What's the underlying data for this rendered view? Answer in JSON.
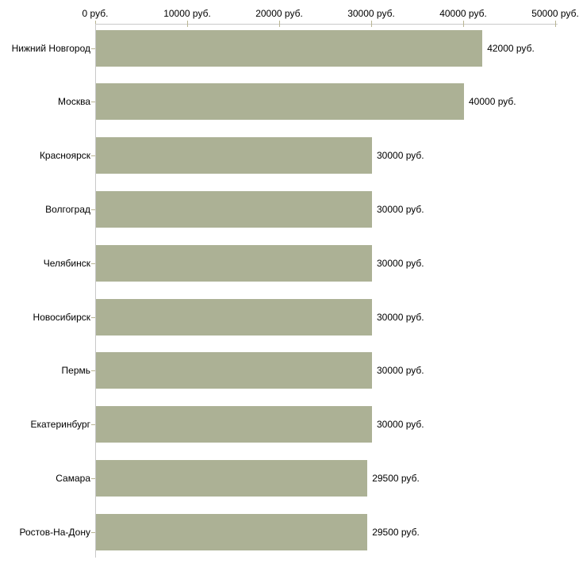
{
  "chart_data": {
    "type": "bar",
    "orientation": "horizontal",
    "title": "",
    "xlabel": "",
    "ylabel": "",
    "unit": "руб.",
    "xlim": [
      0,
      50000
    ],
    "grid": false,
    "legend_position": "none",
    "categories": [
      "Нижний Новгород",
      "Москва",
      "Красноярск",
      "Волгоград",
      "Челябинск",
      "Новосибирск",
      "Пермь",
      "Екатеринбург",
      "Самара",
      "Ростов-На-Дону"
    ],
    "values": [
      42000,
      40000,
      30000,
      30000,
      30000,
      30000,
      30000,
      30000,
      29500,
      29500
    ],
    "value_labels": [
      "42000 руб.",
      "40000 руб.",
      "30000 руб.",
      "30000 руб.",
      "30000 руб.",
      "30000 руб.",
      "30000 руб.",
      "30000 руб.",
      "29500 руб.",
      "29500 руб."
    ],
    "x_ticks": [
      0,
      10000,
      20000,
      30000,
      40000,
      50000
    ],
    "x_tick_labels": [
      "0 руб.",
      "10000 руб.",
      "20000 руб.",
      "30000 руб.",
      "40000 руб.",
      "50000 руб."
    ],
    "bar_color": "#acb195",
    "axis_color": "#c9c9c9",
    "tick_color": "#b9b593",
    "text_color": "#000000",
    "background_color": "#ffffff"
  }
}
